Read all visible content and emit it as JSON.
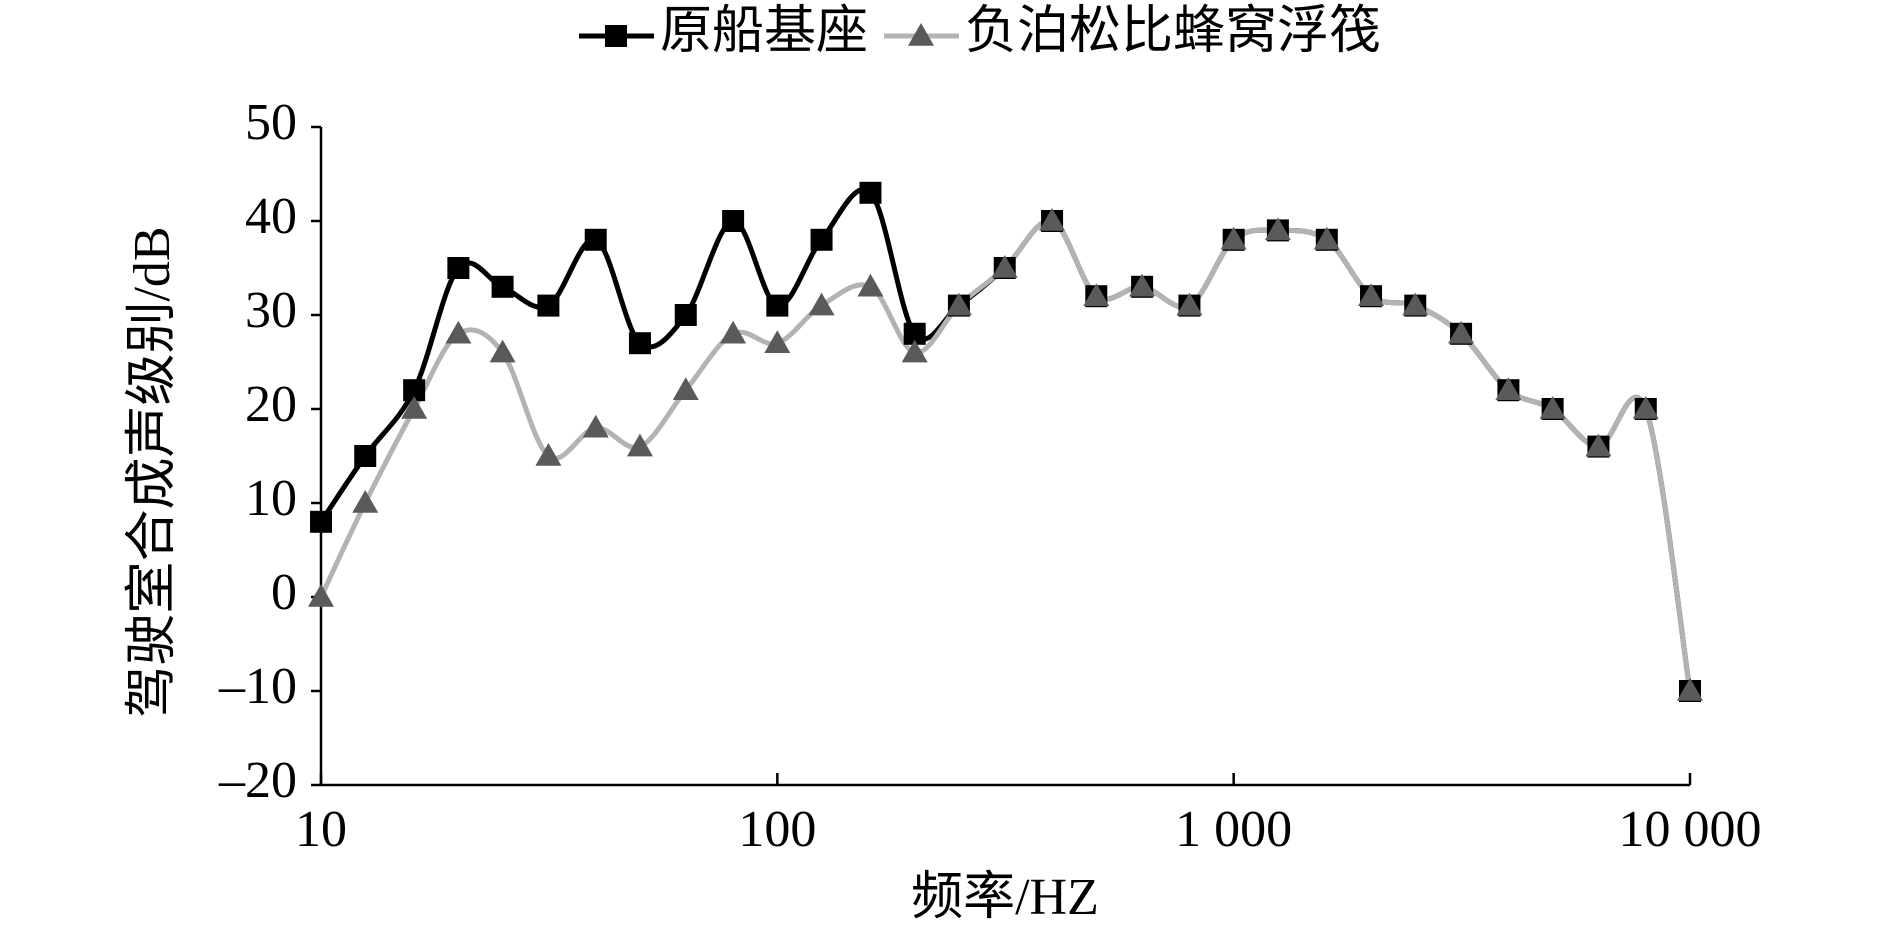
{
  "chart_data": {
    "type": "line",
    "x_label": "频率/HZ",
    "y_label": "驾驶室合成声级别/dB",
    "x": [
      10,
      12.5,
      16,
      20,
      25,
      31.5,
      40,
      50,
      63,
      80,
      100,
      125,
      160,
      200,
      250,
      315,
      400,
      500,
      630,
      800,
      1000,
      1250,
      1600,
      2000,
      2500,
      3150,
      4000,
      5000,
      6300,
      8000,
      10000
    ],
    "series": [
      {
        "name": "原船基座",
        "color": "#000000",
        "marker_color": "#000000",
        "marker": "square",
        "values": [
          8,
          15,
          22,
          35,
          33,
          31,
          38,
          27,
          30,
          40,
          31,
          38,
          43,
          28,
          31,
          35,
          40,
          32,
          33,
          31,
          38,
          39,
          38,
          32,
          31,
          28,
          22,
          20,
          16,
          20,
          -10
        ]
      },
      {
        "name": "负泊松比蜂窝浮筏",
        "color": "#b3b3b3",
        "marker_color": "#5a5a5a",
        "marker": "triangle",
        "values": [
          0,
          10,
          20,
          28,
          26,
          15,
          18,
          16,
          22,
          28,
          27,
          31,
          33,
          26,
          31,
          35,
          40,
          32,
          33,
          31,
          38,
          39,
          38,
          32,
          31,
          28,
          22,
          20,
          16,
          20,
          -10
        ]
      }
    ],
    "xscale": "log",
    "xlim": [
      10,
      10000
    ],
    "xticks": [
      10,
      100,
      {
        "value": 1000,
        "label": "1 000"
      },
      {
        "value": 10000,
        "label": "10 000"
      }
    ],
    "ylim": [
      -20,
      50
    ],
    "yticks": [
      {
        "value": -20,
        "label": "–20"
      },
      {
        "value": -10,
        "label": "–10"
      },
      0,
      10,
      20,
      30,
      40,
      50
    ],
    "grid": false,
    "legend": "top"
  }
}
